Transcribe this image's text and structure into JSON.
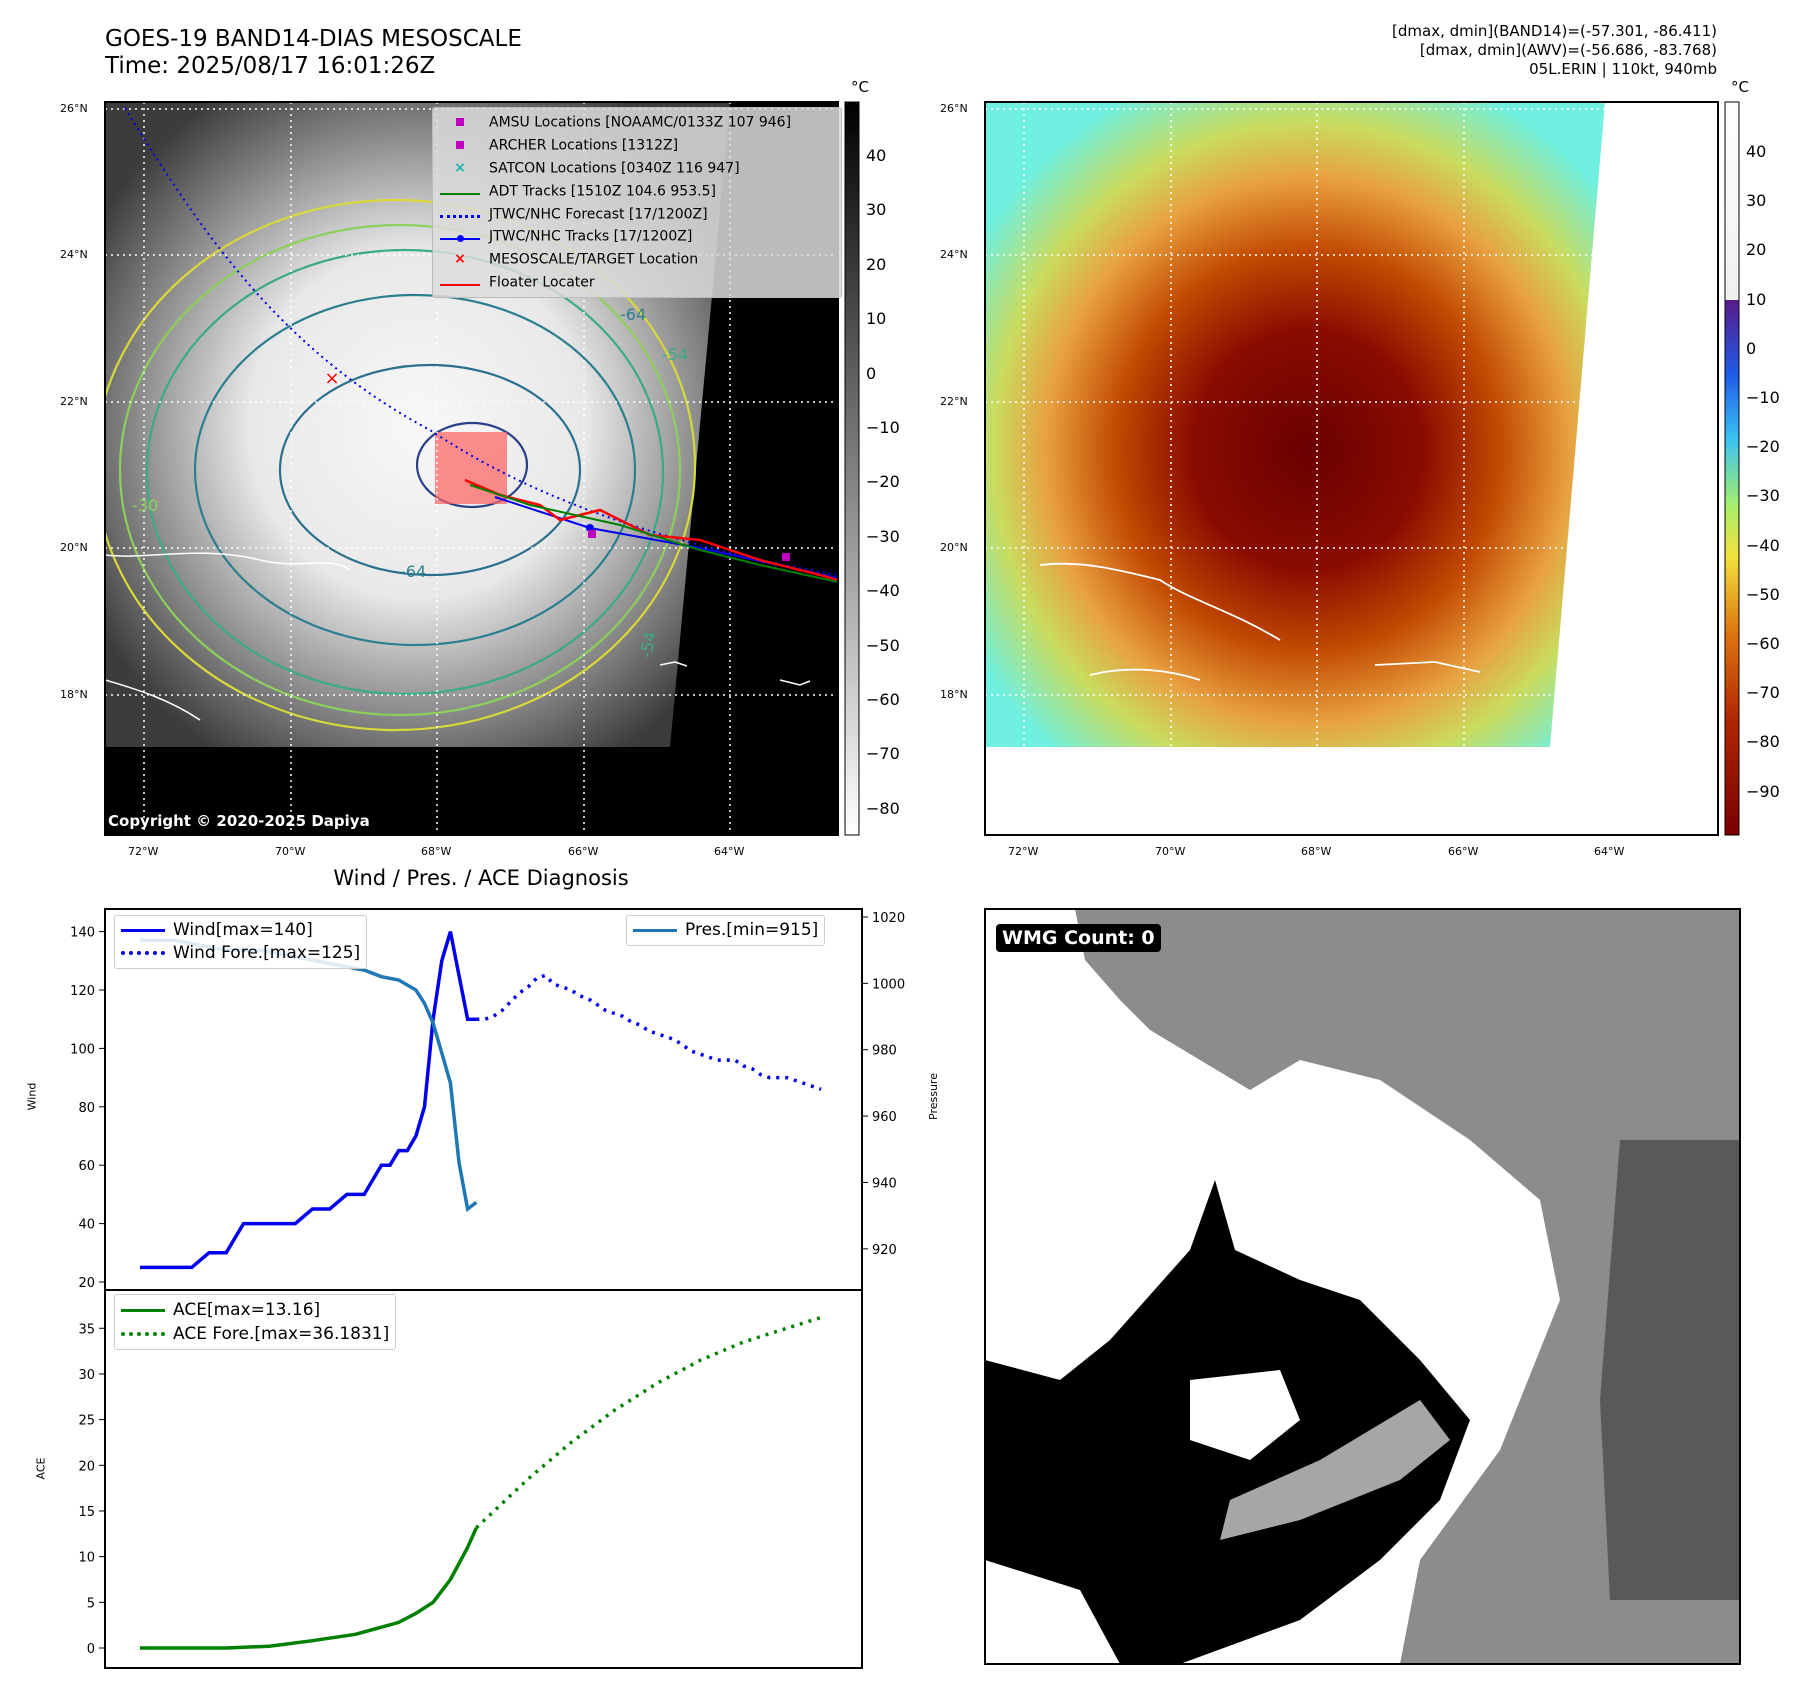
{
  "header": {
    "title_line1": "GOES-19 BAND14-DIAS MESOSCALE",
    "title_line2": "Time: 2025/08/17 16:01:26Z",
    "right_line1": "[dmax, dmin](BAND14)=(-57.301, -86.411)",
    "right_line2": "[dmax, dmin](AWV)=(-56.686, -83.768)",
    "right_line3": "05L.ERIN | 110kt, 940mb"
  },
  "map_left": {
    "lat_labels": [
      "26°N",
      "24°N",
      "22°N",
      "20°N",
      "18°N"
    ],
    "lon_labels": [
      "72°W",
      "70°W",
      "68°W",
      "66°W",
      "64°W"
    ],
    "copyright": "Copyright © 2020-2025 Dapiya",
    "contour_labels": [
      "-64",
      "-64",
      "-54",
      "-54",
      "-30"
    ],
    "legend": [
      {
        "label": "AMSU Locations [NOAAMC/0133Z 107 946]",
        "marker": "square",
        "color": "#c000c0"
      },
      {
        "label": "ARCHER Locations [1312Z]",
        "marker": "square",
        "color": "#c000c0"
      },
      {
        "label": "SATCON Locations [0340Z 116 947]",
        "marker": "x",
        "color": "#17b3b3"
      },
      {
        "label": "ADT Tracks [1510Z 104.6 953.5]",
        "marker": "line",
        "color": "#008000"
      },
      {
        "label": "JTWC/NHC Forecast [17/1200Z]",
        "marker": "dotted",
        "color": "#0000ff"
      },
      {
        "label": "JTWC/NHC Tracks [17/1200Z]",
        "marker": "line-dot",
        "color": "#0000ff"
      },
      {
        "label": "MESOSCALE/TARGET Location",
        "marker": "x",
        "color": "#ff0000"
      },
      {
        "label": "Floater Locater",
        "marker": "line",
        "color": "#ff0000"
      }
    ],
    "colorbar": {
      "unit": "°C",
      "ticks": [
        "40",
        "30",
        "20",
        "10",
        "0",
        "−10",
        "−20",
        "−30",
        "−40",
        "−50",
        "−60",
        "−70",
        "−80"
      ]
    }
  },
  "map_right": {
    "lat_labels": [
      "26°N",
      "24°N",
      "22°N",
      "20°N",
      "18°N"
    ],
    "lon_labels": [
      "72°W",
      "70°W",
      "68°W",
      "66°W",
      "64°W"
    ],
    "colorbar": {
      "unit": "°C",
      "ticks": [
        "40",
        "30",
        "20",
        "10",
        "0",
        "−10",
        "−20",
        "−30",
        "−40",
        "−50",
        "−60",
        "−70",
        "−80",
        "−90"
      ]
    }
  },
  "wmg": {
    "label": "WMG Count: 0"
  },
  "chart_data": [
    {
      "type": "line",
      "title": "Wind / Pres. / ACE Diagnosis",
      "ylabel": "Wind",
      "ylabel_right": "Pressure",
      "ylim": [
        20,
        145
      ],
      "yticks": [
        "20",
        "40",
        "60",
        "80",
        "100",
        "120",
        "140"
      ],
      "ylim_right": [
        910,
        1020
      ],
      "yticks_right": [
        "920",
        "940",
        "960",
        "980",
        "1000",
        "1020"
      ],
      "series": [
        {
          "name": "Wind[max=140]",
          "style": "solid",
          "color": "#0000ee",
          "x": [
            0,
            2,
            4,
            6,
            8,
            10,
            12,
            14,
            16,
            18,
            20,
            22,
            24,
            26,
            28,
            29,
            30,
            31,
            32,
            33,
            34,
            35,
            36,
            37,
            38,
            39
          ],
          "values": [
            25,
            25,
            25,
            25,
            30,
            30,
            40,
            40,
            40,
            40,
            45,
            45,
            50,
            50,
            60,
            60,
            65,
            65,
            70,
            80,
            110,
            130,
            140,
            125,
            110,
            110
          ]
        },
        {
          "name": "Wind Fore.[max=125]",
          "style": "dotted",
          "color": "#0000ee",
          "x": [
            39,
            40,
            41,
            42,
            43,
            44,
            45,
            46,
            47,
            48,
            49,
            50,
            51,
            52,
            53,
            54,
            55,
            56,
            57,
            58,
            59,
            60,
            61,
            62,
            63,
            64,
            65,
            66,
            67,
            68,
            69,
            70,
            71,
            72,
            73,
            74,
            75,
            76,
            77,
            78,
            79
          ],
          "values": [
            110,
            110,
            111,
            113,
            116,
            119,
            121,
            124,
            125,
            122,
            121,
            120,
            118,
            117,
            115,
            113,
            112,
            111,
            109,
            108,
            106,
            105,
            104,
            103,
            101,
            99,
            98,
            97,
            96,
            96,
            96,
            94,
            93,
            91,
            90,
            90,
            90,
            89,
            88,
            87,
            86
          ]
        },
        {
          "name": "Pres.[min=915]",
          "style": "solid",
          "color": "#1f77b4",
          "axis": "right",
          "x": [
            0,
            2,
            4,
            6,
            8,
            10,
            12,
            14,
            16,
            18,
            20,
            22,
            24,
            26,
            28,
            30,
            32,
            33,
            34,
            35,
            36,
            37,
            38,
            39
          ],
          "values": [
            1013,
            1013,
            1013,
            1012,
            1011,
            1010,
            1010,
            1010,
            1009,
            1008,
            1007,
            1006,
            1005,
            1004,
            1002,
            1001,
            998,
            994,
            988,
            979,
            970,
            946,
            932,
            934
          ]
        }
      ],
      "legend_left": [
        "Wind[max=140]",
        "Wind Fore.[max=125]"
      ],
      "legend_right": [
        "Pres.[min=915]"
      ]
    },
    {
      "type": "line",
      "ylabel": "ACE",
      "ylim": [
        -1,
        37
      ],
      "yticks": [
        "0",
        "5",
        "10",
        "15",
        "20",
        "25",
        "30",
        "35"
      ],
      "series": [
        {
          "name": "ACE[max=13.16]",
          "style": "solid",
          "color": "#008000",
          "x": [
            0,
            5,
            10,
            15,
            20,
            25,
            30,
            32,
            34,
            36,
            38,
            39
          ],
          "values": [
            0,
            0,
            0,
            0.2,
            0.8,
            1.5,
            2.8,
            3.8,
            5,
            7.5,
            11,
            13.16
          ]
        },
        {
          "name": "ACE Fore.[max=36.1831]",
          "style": "dotted",
          "color": "#008000",
          "x": [
            39,
            45,
            50,
            55,
            60,
            65,
            70,
            75,
            79
          ],
          "values": [
            13.16,
            18.5,
            22.5,
            26,
            29,
            31.5,
            33.5,
            35,
            36.1831
          ]
        }
      ]
    }
  ]
}
